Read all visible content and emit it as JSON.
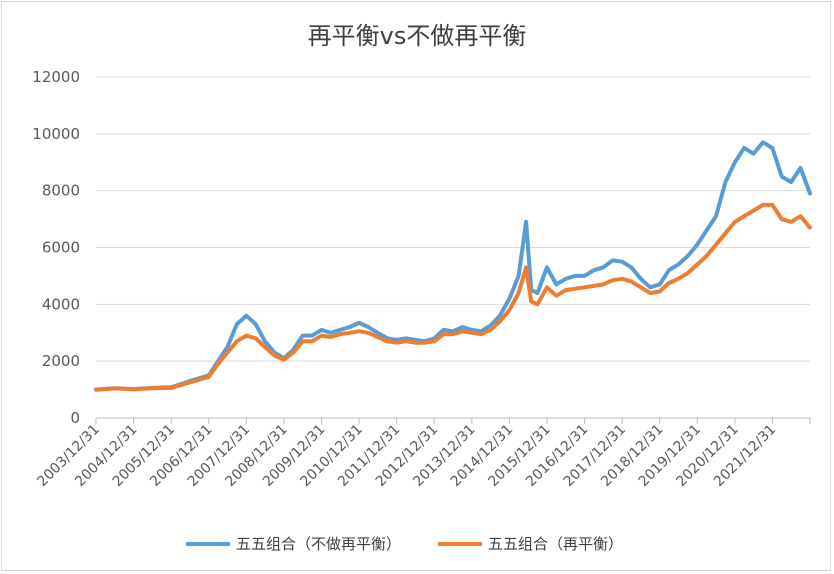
{
  "chart_data": {
    "type": "line",
    "title": "再平衡vs不做再平衡",
    "xlabel": "",
    "ylabel": "",
    "ylim": [
      0,
      12000
    ],
    "yticks": [
      0,
      2000,
      4000,
      6000,
      8000,
      10000,
      12000
    ],
    "xticks": [
      "2003/12/31",
      "2004/12/31",
      "2005/12/31",
      "2006/12/31",
      "2007/12/31",
      "2008/12/31",
      "2009/12/31",
      "2010/12/31",
      "2011/12/31",
      "2012/12/31",
      "2013/12/31",
      "2014/12/31",
      "2015/12/31",
      "2016/12/31",
      "2017/12/31",
      "2018/12/31",
      "2019/12/31",
      "2020/12/31",
      "2021/12/31"
    ],
    "grid": true,
    "legend": "bottom",
    "x": [
      "2003/12/31",
      "2004/06/30",
      "2004/12/31",
      "2005/06/30",
      "2005/12/31",
      "2006/06/30",
      "2006/12/31",
      "2007/03/31",
      "2007/06/30",
      "2007/09/30",
      "2007/12/31",
      "2008/03/31",
      "2008/06/30",
      "2008/09/30",
      "2008/12/31",
      "2009/03/31",
      "2009/06/30",
      "2009/09/30",
      "2009/12/31",
      "2010/03/31",
      "2010/06/30",
      "2010/09/30",
      "2010/12/31",
      "2011/03/31",
      "2011/06/30",
      "2011/09/30",
      "2011/12/31",
      "2012/03/31",
      "2012/06/30",
      "2012/09/30",
      "2012/12/31",
      "2013/03/31",
      "2013/06/30",
      "2013/09/30",
      "2013/12/31",
      "2014/03/31",
      "2014/06/30",
      "2014/09/30",
      "2014/12/31",
      "2015/03/31",
      "2015/06/12",
      "2015/07/31",
      "2015/09/30",
      "2015/12/31",
      "2016/03/31",
      "2016/06/30",
      "2016/09/30",
      "2016/12/31",
      "2017/03/31",
      "2017/06/30",
      "2017/09/30",
      "2017/12/31",
      "2018/03/31",
      "2018/06/30",
      "2018/09/30",
      "2018/12/31",
      "2019/03/31",
      "2019/06/30",
      "2019/09/30",
      "2019/12/31",
      "2020/03/31",
      "2020/06/30",
      "2020/09/30",
      "2020/12/31",
      "2021/03/31",
      "2021/06/30",
      "2021/09/30",
      "2021/12/31",
      "2022/03/31",
      "2022/06/30",
      "2022/09/30",
      "2022/12/31"
    ],
    "series": [
      {
        "name": "五五组合（不做再平衡）",
        "color": "#5b9bd5",
        "values": [
          1000,
          1050,
          1020,
          1060,
          1080,
          1300,
          1500,
          2000,
          2500,
          3300,
          3600,
          3300,
          2700,
          2300,
          2100,
          2400,
          2900,
          2900,
          3100,
          3000,
          3100,
          3200,
          3350,
          3200,
          3000,
          2800,
          2750,
          2800,
          2750,
          2700,
          2800,
          3100,
          3050,
          3200,
          3100,
          3050,
          3250,
          3600,
          4200,
          5000,
          6900,
          4500,
          4400,
          5300,
          4700,
          4900,
          5000,
          5000,
          5200,
          5300,
          5550,
          5500,
          5300,
          4900,
          4600,
          4700,
          5200,
          5400,
          5700,
          6100,
          6600,
          7100,
          8300,
          9000,
          9500,
          9300,
          9700,
          9500,
          8500,
          8300,
          8800,
          7900
        ]
      },
      {
        "name": "五五组合（再平衡）",
        "color": "#ed7d31",
        "values": [
          1000,
          1040,
          1010,
          1050,
          1060,
          1250,
          1450,
          1900,
          2300,
          2700,
          2900,
          2800,
          2500,
          2200,
          2050,
          2300,
          2700,
          2700,
          2900,
          2850,
          2950,
          3000,
          3050,
          3000,
          2850,
          2700,
          2650,
          2700,
          2650,
          2650,
          2700,
          2950,
          2950,
          3050,
          3000,
          2950,
          3100,
          3400,
          3800,
          4400,
          5300,
          4100,
          4000,
          4600,
          4300,
          4500,
          4550,
          4600,
          4650,
          4700,
          4850,
          4900,
          4800,
          4600,
          4400,
          4450,
          4750,
          4900,
          5100,
          5400,
          5700,
          6100,
          6500,
          6900,
          7100,
          7300,
          7500,
          7500,
          7000,
          6900,
          7100,
          6700
        ]
      }
    ]
  }
}
